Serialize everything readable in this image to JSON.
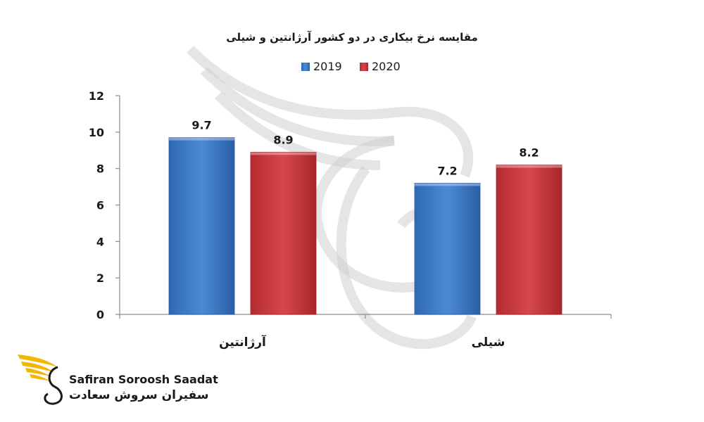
{
  "chart_data": {
    "type": "bar",
    "title": "مقایسه نرخ بیکاری در دو کشور آرژانتین و شیلی",
    "categories": [
      "آرژانتین",
      "شیلی"
    ],
    "series": [
      {
        "name": "2019",
        "values": [
          9.7,
          7.2
        ],
        "color": "#3d7cc9"
      },
      {
        "name": "2020",
        "values": [
          8.9,
          8.2
        ],
        "color": "#c9353a"
      }
    ],
    "ylim": [
      0,
      12
    ],
    "yticks": [
      "0",
      "2",
      "4",
      "6",
      "8",
      "10",
      "12"
    ],
    "data_labels": [
      [
        "9.7",
        "8.9"
      ],
      [
        "7.2",
        "8.2"
      ]
    ],
    "legend_position": "top-center",
    "grid": false
  },
  "logo": {
    "name_en": "Safiran Soroosh Saadat",
    "name_fa": "سفیران سروش سعادت"
  },
  "colors": {
    "axis": "#8c8c8c",
    "text": "#1a1a1a",
    "logo_gold": "#f2b705"
  }
}
